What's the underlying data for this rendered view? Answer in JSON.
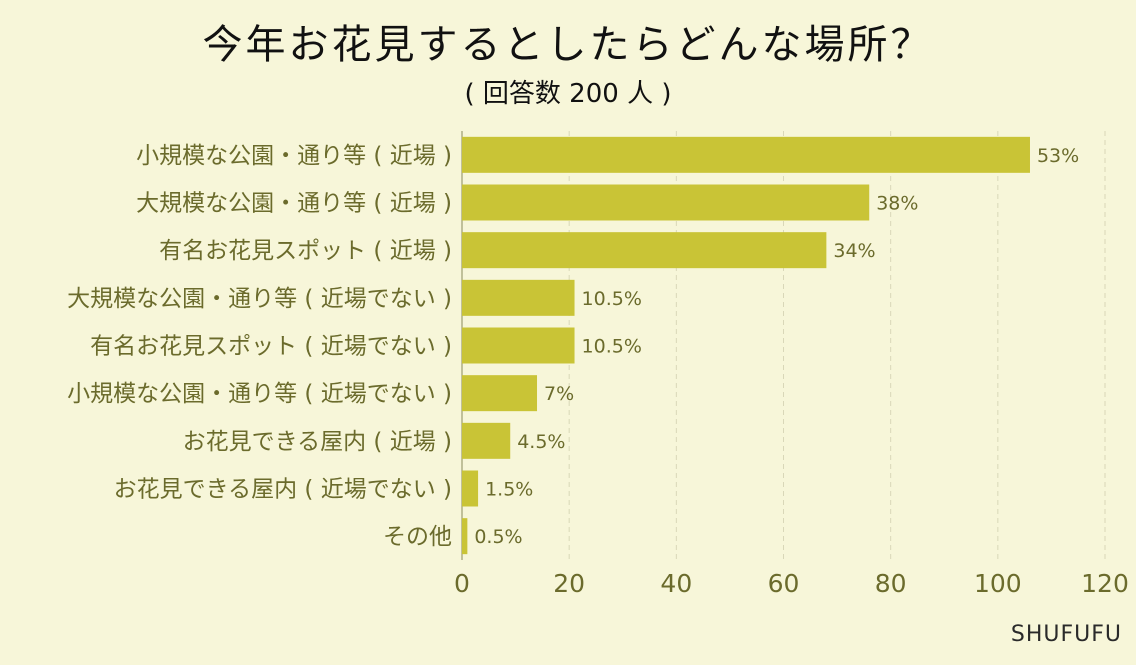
{
  "chart_data": {
    "type": "bar",
    "orientation": "horizontal",
    "title": "今年お花見するとしたらどんな場所？",
    "subtitle": "( 回答数 200 人 )",
    "categories": [
      "小規模な公園・通り等 ( 近場 )",
      "大規模な公園・通り等 ( 近場 )",
      "有名お花見スポット ( 近場 )",
      "大規模な公園・通り等 ( 近場でない )",
      "有名お花見スポット ( 近場でない )",
      "小規模な公園・通り等 ( 近場でない )",
      "お花見できる屋内 ( 近場 )",
      "お花見できる屋内 ( 近場でない )",
      "その他"
    ],
    "values": [
      106,
      76,
      68,
      21,
      21,
      14,
      9,
      3,
      1
    ],
    "value_labels": [
      "53%",
      "38%",
      "34%",
      "10.5%",
      "10.5%",
      "7%",
      "4.5%",
      "1.5%",
      "0.5%"
    ],
    "xlim": [
      0,
      120
    ],
    "xticks": [
      "0",
      "20",
      "40",
      "60",
      "80",
      "100",
      "120"
    ],
    "grid": true,
    "bar_color": "#c9c436"
  },
  "brand": "SHUFUFU"
}
